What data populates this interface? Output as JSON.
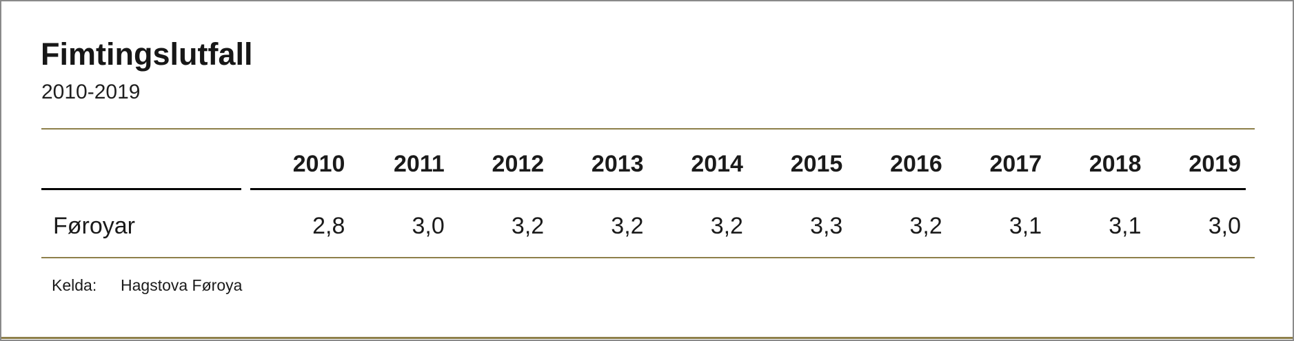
{
  "header": {
    "title": "Fimtingslutfall",
    "subtitle": "2010-2019"
  },
  "table": {
    "row_label_header": "",
    "columns": [
      "2010",
      "2011",
      "2012",
      "2013",
      "2014",
      "2015",
      "2016",
      "2017",
      "2018",
      "2019"
    ],
    "rows": [
      {
        "label": "Føroyar",
        "values": [
          "2,8",
          "3,0",
          "3,2",
          "3,2",
          "3,2",
          "3,3",
          "3,2",
          "3,1",
          "3,1",
          "3,0"
        ]
      }
    ]
  },
  "footer": {
    "source_label": "Kelda:",
    "source_value": "Hagstova Føroya"
  },
  "colors": {
    "accent_rule": "#8d7f49",
    "header_underline": "#000000",
    "text": "#1a1a1a",
    "outer_border": "#8a8a8a"
  },
  "chart_data": {
    "type": "table",
    "title": "Fimtingslutfall",
    "subtitle": "2010-2019",
    "categories": [
      "2010",
      "2011",
      "2012",
      "2013",
      "2014",
      "2015",
      "2016",
      "2017",
      "2018",
      "2019"
    ],
    "series": [
      {
        "name": "Føroyar",
        "values": [
          2.8,
          3.0,
          3.2,
          3.2,
          3.2,
          3.3,
          3.2,
          3.1,
          3.1,
          3.0
        ]
      }
    ],
    "number_format": "decimal-comma",
    "source": "Kelda: Hagstova Føroya"
  }
}
